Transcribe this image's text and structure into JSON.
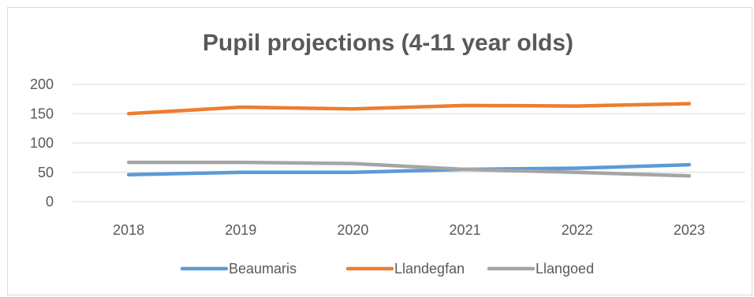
{
  "chart_data": {
    "type": "line",
    "title": "Pupil projections (4-11 year olds)",
    "xlabel": "",
    "ylabel": "",
    "categories": [
      "2018",
      "2019",
      "2020",
      "2021",
      "2022",
      "2023"
    ],
    "ylim": [
      0,
      200
    ],
    "yticks": [
      0,
      50,
      100,
      150,
      200
    ],
    "grid": true,
    "legend_position": "bottom",
    "series": [
      {
        "name": "Beaumaris",
        "color": "#5b9bd5",
        "values": [
          46,
          50,
          50,
          55,
          57,
          63
        ]
      },
      {
        "name": "Llandegfan",
        "color": "#ed7d31",
        "values": [
          150,
          161,
          158,
          164,
          163,
          167
        ]
      },
      {
        "name": "Llangoed",
        "color": "#a5a5a5",
        "values": [
          67,
          67,
          65,
          55,
          50,
          44
        ]
      }
    ]
  }
}
